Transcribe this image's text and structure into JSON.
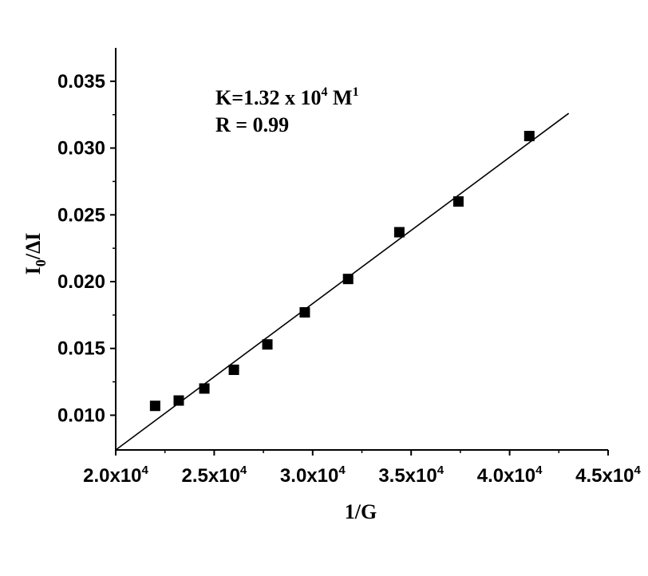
{
  "chart_data": {
    "type": "scatter",
    "xlabel": "1/G",
    "ylabel_main": "I",
    "ylabel_sub": "0",
    "ylabel_rest": "/ΔI",
    "xlim": [
      20000,
      45000
    ],
    "ylim": [
      0.0074,
      0.0375
    ],
    "xticks": [
      {
        "value": 20000,
        "mantissa": "2.0x10",
        "exp": "4"
      },
      {
        "value": 25000,
        "mantissa": "2.5x10",
        "exp": "4"
      },
      {
        "value": 30000,
        "mantissa": "3.0x10",
        "exp": "4"
      },
      {
        "value": 35000,
        "mantissa": "3.5x10",
        "exp": "4"
      },
      {
        "value": 40000,
        "mantissa": "4.0x10",
        "exp": "4"
      },
      {
        "value": 45000,
        "mantissa": "4.5x10",
        "exp": "4"
      }
    ],
    "yticks": [
      {
        "value": 0.01,
        "label": "0.010"
      },
      {
        "value": 0.015,
        "label": "0.015"
      },
      {
        "value": 0.02,
        "label": "0.020"
      },
      {
        "value": 0.025,
        "label": "0.025"
      },
      {
        "value": 0.03,
        "label": "0.030"
      },
      {
        "value": 0.035,
        "label": "0.035"
      }
    ],
    "points": [
      {
        "x": 22000,
        "y": 0.0107
      },
      {
        "x": 23200,
        "y": 0.0111
      },
      {
        "x": 24500,
        "y": 0.012
      },
      {
        "x": 26000,
        "y": 0.0134
      },
      {
        "x": 27700,
        "y": 0.0153
      },
      {
        "x": 29600,
        "y": 0.0177
      },
      {
        "x": 31800,
        "y": 0.0202
      },
      {
        "x": 34400,
        "y": 0.0237
      },
      {
        "x": 37400,
        "y": 0.026
      },
      {
        "x": 41000,
        "y": 0.0309
      }
    ],
    "fit_line": {
      "x1": 20000,
      "y1": 0.0074,
      "x2": 43000,
      "y2": 0.0326
    },
    "annotation": {
      "line1_prefix": "K=1.32 x 10",
      "line1_exp": "4",
      "line1_unit": " M",
      "line1_unit_exp": "1",
      "line2": "R = 0.99"
    },
    "grid": false,
    "legend": "none",
    "marker_color": "#000000",
    "line_color": "#000000"
  }
}
